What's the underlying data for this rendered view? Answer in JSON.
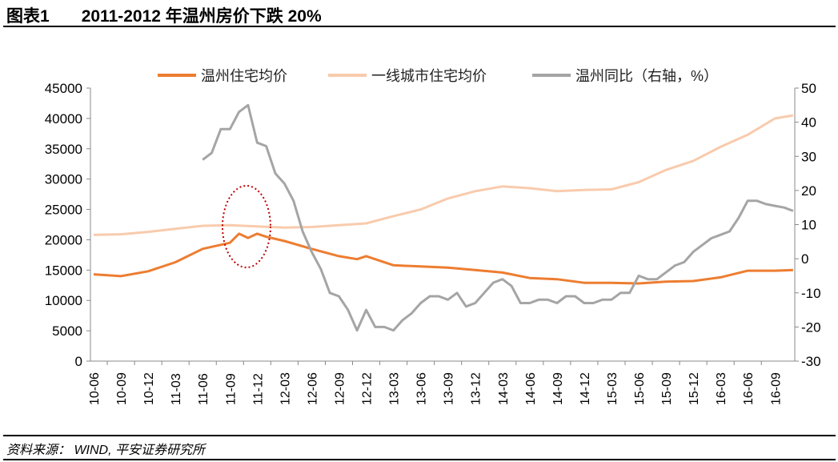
{
  "header": {
    "label": "图表1",
    "title": "2011-2012 年温州房价下跌 20%"
  },
  "source": "资料来源： WIND, 平安证券研究所",
  "chart_data": {
    "type": "line",
    "title": "2011-2012 年温州房价下跌 20%",
    "y_left": {
      "ylim": [
        0,
        45000
      ],
      "ticks": [
        0,
        5000,
        10000,
        15000,
        20000,
        25000,
        30000,
        35000,
        40000,
        45000
      ]
    },
    "y_right": {
      "ylim": [
        -30,
        50
      ],
      "ticks": [
        -30,
        -20,
        -10,
        0,
        10,
        20,
        30,
        40,
        50
      ]
    },
    "x_ticks": [
      "10-06",
      "10-09",
      "10-12",
      "11-03",
      "11-06",
      "11-09",
      "11-12",
      "12-03",
      "12-06",
      "12-09",
      "12-12",
      "13-03",
      "13-06",
      "13-09",
      "13-12",
      "14-03",
      "14-06",
      "14-09",
      "14-12",
      "15-03",
      "15-06",
      "15-09",
      "15-12",
      "16-03",
      "16-06",
      "16-09"
    ],
    "x_range": [
      "10-06",
      "16-11"
    ],
    "grid": false,
    "legend": "top",
    "series": [
      {
        "name": "温州住宅均价",
        "axis": "left",
        "color": "#ED7D31",
        "points": [
          [
            "10-06",
            14300
          ],
          [
            "10-09",
            14000
          ],
          [
            "10-12",
            14800
          ],
          [
            "11-03",
            16300
          ],
          [
            "11-06",
            18500
          ],
          [
            "11-09",
            19500
          ],
          [
            "11-10",
            21000
          ],
          [
            "11-11",
            20300
          ],
          [
            "11-12",
            21000
          ],
          [
            "12-01",
            20500
          ],
          [
            "12-03",
            19800
          ],
          [
            "12-06",
            18500
          ],
          [
            "12-09",
            17300
          ],
          [
            "12-11",
            16800
          ],
          [
            "12-12",
            17300
          ],
          [
            "13-03",
            15800
          ],
          [
            "13-06",
            15600
          ],
          [
            "13-09",
            15400
          ],
          [
            "13-12",
            15000
          ],
          [
            "14-03",
            14600
          ],
          [
            "14-06",
            13700
          ],
          [
            "14-09",
            13500
          ],
          [
            "14-12",
            12900
          ],
          [
            "15-03",
            12900
          ],
          [
            "15-06",
            12800
          ],
          [
            "15-09",
            13100
          ],
          [
            "15-12",
            13200
          ],
          [
            "16-03",
            13800
          ],
          [
            "16-06",
            14900
          ],
          [
            "16-09",
            14900
          ],
          [
            "16-11",
            15000
          ]
        ]
      },
      {
        "name": "一线城市住宅均价",
        "axis": "left",
        "color": "#F8CBAD",
        "points": [
          [
            "10-06",
            20800
          ],
          [
            "10-09",
            20900
          ],
          [
            "10-12",
            21300
          ],
          [
            "11-03",
            21800
          ],
          [
            "11-06",
            22300
          ],
          [
            "11-09",
            22400
          ],
          [
            "11-12",
            22200
          ],
          [
            "12-03",
            22000
          ],
          [
            "12-06",
            22100
          ],
          [
            "12-09",
            22400
          ],
          [
            "12-12",
            22700
          ],
          [
            "13-03",
            23900
          ],
          [
            "13-06",
            25000
          ],
          [
            "13-09",
            26800
          ],
          [
            "13-12",
            28000
          ],
          [
            "14-03",
            28800
          ],
          [
            "14-06",
            28500
          ],
          [
            "14-09",
            28000
          ],
          [
            "14-12",
            28200
          ],
          [
            "15-03",
            28300
          ],
          [
            "15-06",
            29500
          ],
          [
            "15-09",
            31500
          ],
          [
            "15-12",
            33000
          ],
          [
            "16-03",
            35300
          ],
          [
            "16-06",
            37300
          ],
          [
            "16-09",
            40000
          ],
          [
            "16-11",
            40500
          ]
        ]
      },
      {
        "name": "温州同比（右轴，%）",
        "axis": "right",
        "color": "#A5A5A5",
        "points": [
          [
            "11-06",
            29
          ],
          [
            "11-07",
            31
          ],
          [
            "11-08",
            38
          ],
          [
            "11-09",
            38
          ],
          [
            "11-10",
            43
          ],
          [
            "11-11",
            45
          ],
          [
            "11-12",
            34
          ],
          [
            "12-01",
            33
          ],
          [
            "12-02",
            25
          ],
          [
            "12-03",
            22
          ],
          [
            "12-04",
            17
          ],
          [
            "12-05",
            8
          ],
          [
            "12-06",
            2
          ],
          [
            "12-07",
            -3
          ],
          [
            "12-08",
            -10
          ],
          [
            "12-09",
            -11
          ],
          [
            "12-10",
            -15
          ],
          [
            "12-11",
            -21
          ],
          [
            "12-12",
            -15
          ],
          [
            "13-01",
            -20
          ],
          [
            "13-02",
            -20
          ],
          [
            "13-03",
            -21
          ],
          [
            "13-04",
            -18
          ],
          [
            "13-05",
            -16
          ],
          [
            "13-06",
            -13
          ],
          [
            "13-07",
            -11
          ],
          [
            "13-08",
            -11
          ],
          [
            "13-09",
            -12
          ],
          [
            "13-10",
            -10
          ],
          [
            "13-11",
            -14
          ],
          [
            "13-12",
            -13
          ],
          [
            "14-01",
            -10
          ],
          [
            "14-02",
            -7
          ],
          [
            "14-03",
            -6
          ],
          [
            "14-04",
            -8
          ],
          [
            "14-05",
            -13
          ],
          [
            "14-06",
            -13
          ],
          [
            "14-07",
            -12
          ],
          [
            "14-08",
            -12
          ],
          [
            "14-09",
            -13
          ],
          [
            "14-10",
            -11
          ],
          [
            "14-11",
            -11
          ],
          [
            "14-12",
            -13
          ],
          [
            "15-01",
            -13
          ],
          [
            "15-02",
            -12
          ],
          [
            "15-03",
            -12
          ],
          [
            "15-04",
            -10
          ],
          [
            "15-05",
            -10
          ],
          [
            "15-06",
            -5
          ],
          [
            "15-07",
            -6
          ],
          [
            "15-08",
            -6
          ],
          [
            "15-09",
            -4
          ],
          [
            "15-10",
            -2
          ],
          [
            "15-11",
            -1
          ],
          [
            "15-12",
            2
          ],
          [
            "16-01",
            4
          ],
          [
            "16-02",
            6
          ],
          [
            "16-03",
            7
          ],
          [
            "16-04",
            8
          ],
          [
            "16-05",
            12
          ],
          [
            "16-06",
            17
          ],
          [
            "16-07",
            17
          ],
          [
            "16-08",
            16
          ],
          [
            "16-09",
            15.5
          ],
          [
            "16-10",
            15
          ],
          [
            "16-11",
            14
          ]
        ]
      }
    ],
    "annotation": {
      "shape": "dotted-ellipse",
      "color": "#C00000",
      "around": "11-11"
    }
  }
}
